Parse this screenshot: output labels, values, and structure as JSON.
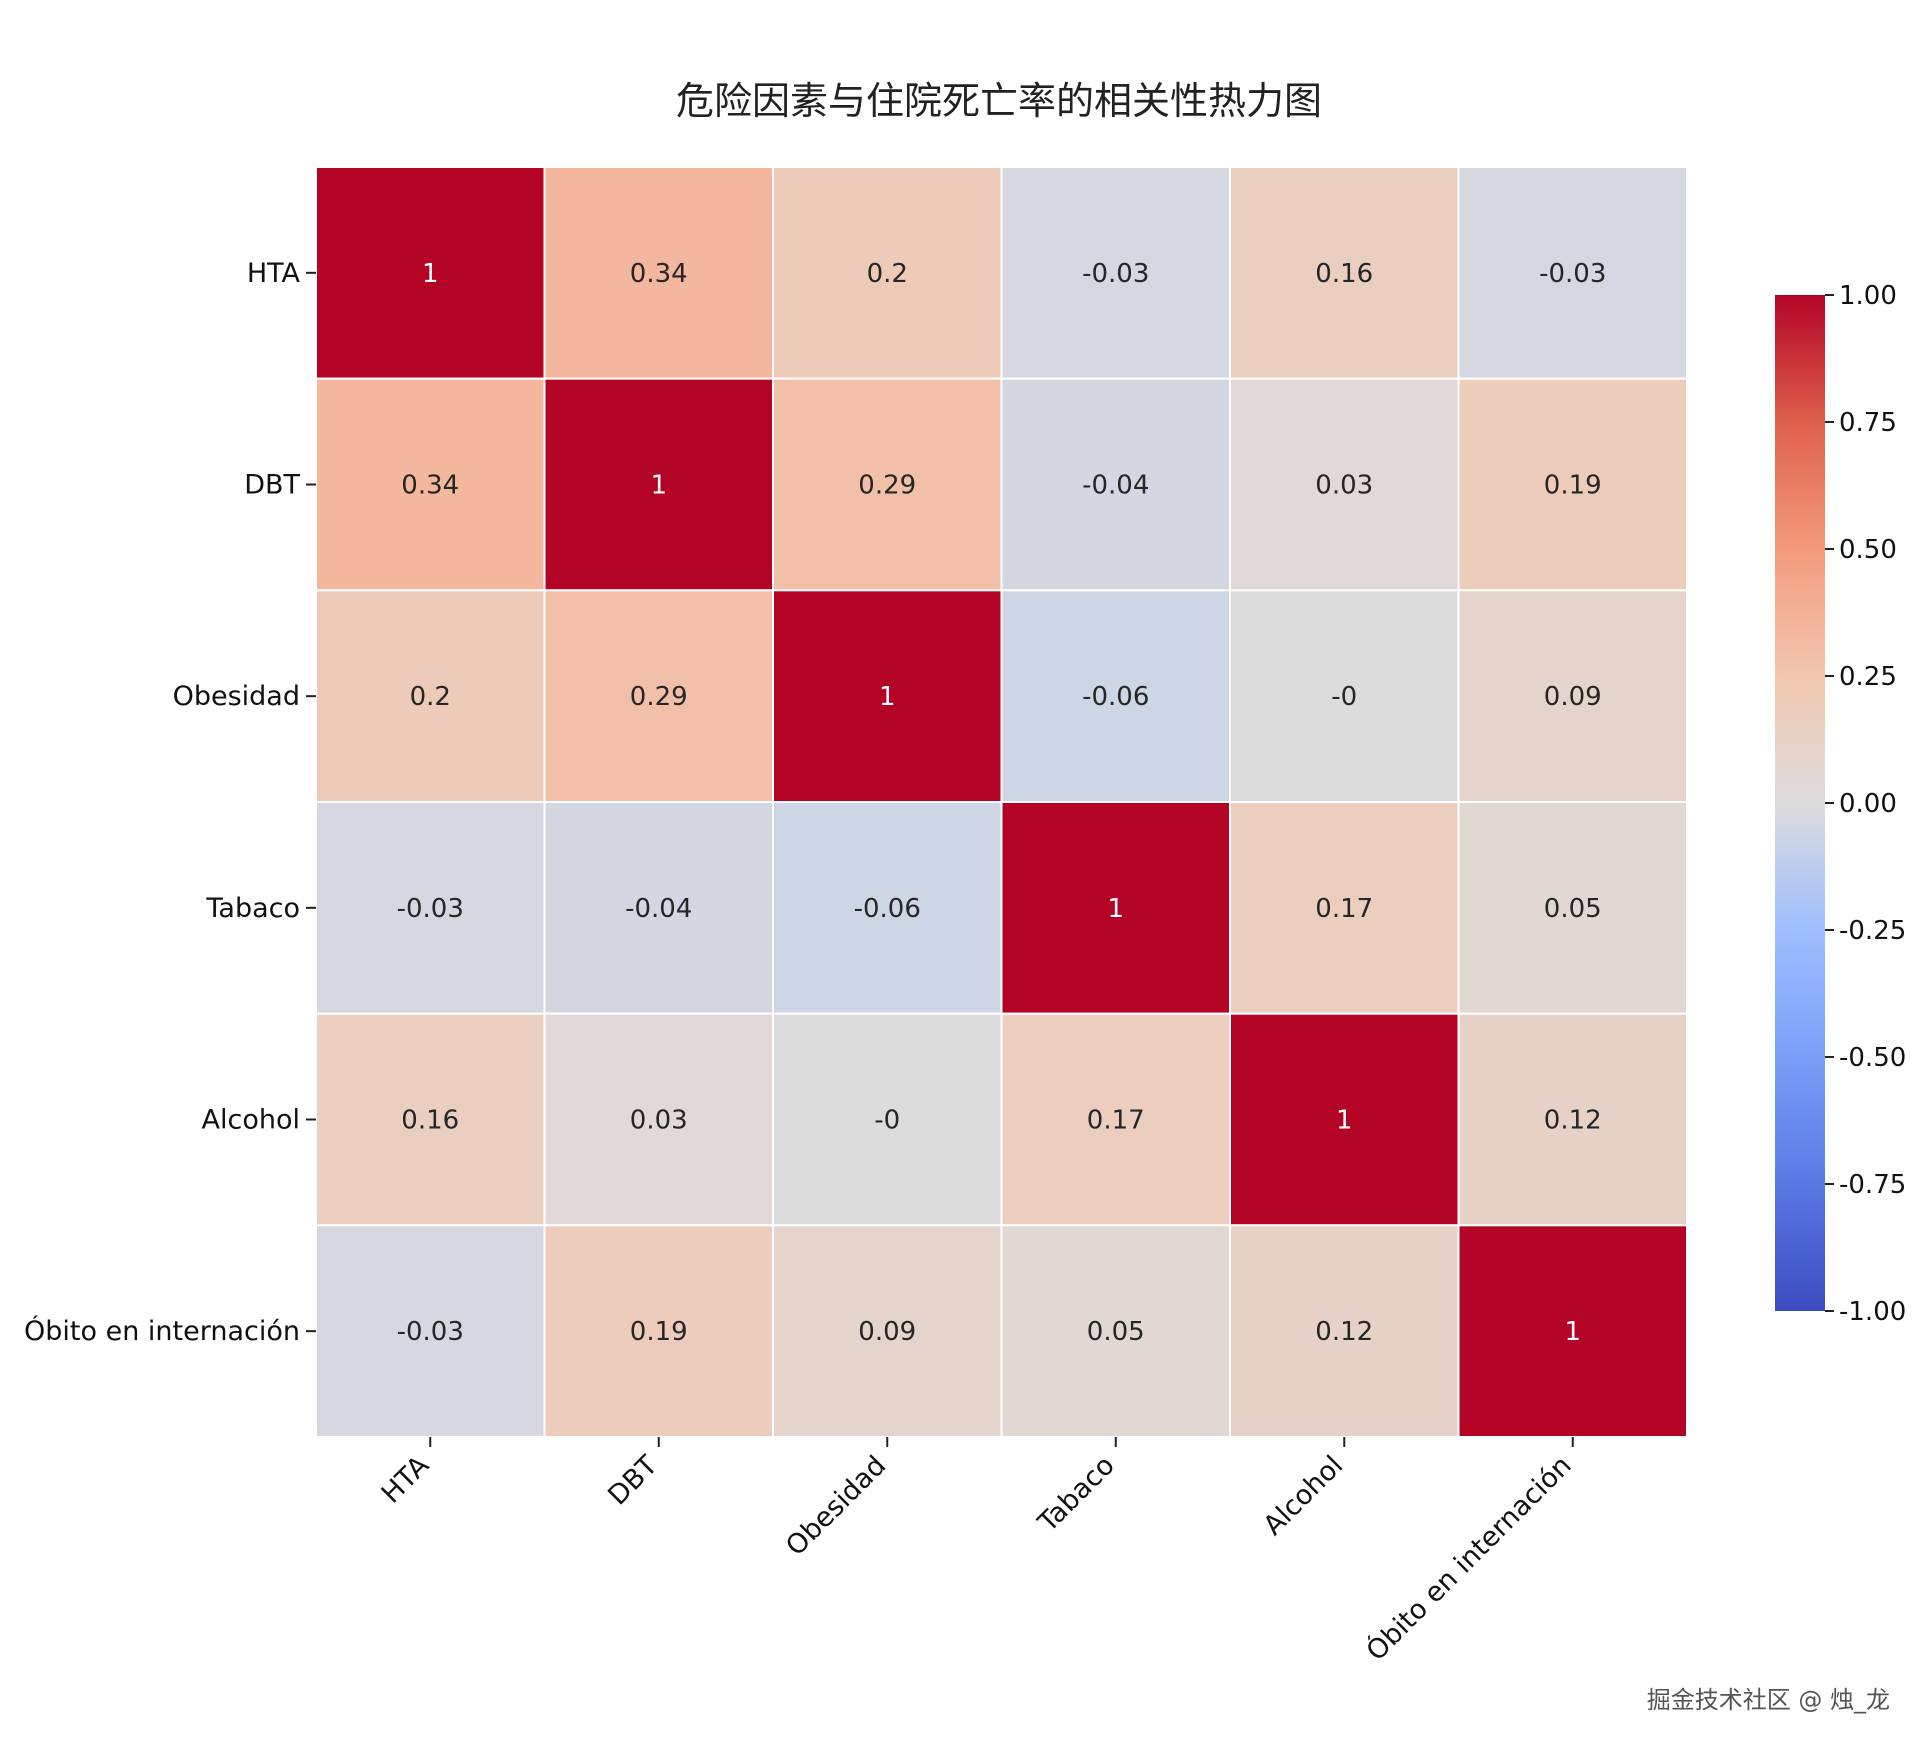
{
  "chart_data": {
    "type": "heatmap",
    "title": "危险因素与住院死亡率的相关性热力图",
    "x_labels": [
      "HTA",
      "DBT",
      "Obesidad",
      "Tabaco",
      "Alcohol",
      "Óbito en internación"
    ],
    "y_labels": [
      "HTA",
      "DBT",
      "Obesidad",
      "Tabaco",
      "Alcohol",
      "Óbito en internación"
    ],
    "values": [
      [
        1,
        0.34,
        0.2,
        -0.03,
        0.16,
        -0.03
      ],
      [
        0.34,
        1,
        0.29,
        -0.04,
        0.03,
        0.19
      ],
      [
        0.2,
        0.29,
        1,
        -0.06,
        -0.0,
        0.09
      ],
      [
        -0.03,
        -0.04,
        -0.06,
        1,
        0.17,
        0.05
      ],
      [
        0.16,
        0.03,
        -0.0,
        0.17,
        1,
        0.12
      ],
      [
        -0.03,
        0.19,
        0.09,
        0.05,
        0.12,
        1
      ]
    ],
    "annotations": [
      [
        "1",
        "0.34",
        "0.2",
        "-0.03",
        "0.16",
        "-0.03"
      ],
      [
        "0.34",
        "1",
        "0.29",
        "-0.04",
        "0.03",
        "0.19"
      ],
      [
        "0.2",
        "0.29",
        "1",
        "-0.06",
        "-0",
        "0.09"
      ],
      [
        "-0.03",
        "-0.04",
        "-0.06",
        "1",
        "0.17",
        "0.05"
      ],
      [
        "0.16",
        "0.03",
        "-0",
        "0.17",
        "1",
        "0.12"
      ],
      [
        "-0.03",
        "0.19",
        "0.09",
        "0.05",
        "0.12",
        "1"
      ]
    ],
    "colormap": "coolwarm",
    "vmin": -1,
    "vmax": 1,
    "colorbar_ticks": [
      "1.00",
      "0.75",
      "0.50",
      "0.25",
      "0.00",
      "-0.25",
      "-0.50",
      "-0.75",
      "-1.00"
    ],
    "colorbar_tick_values": [
      1,
      0.75,
      0.5,
      0.25,
      0,
      -0.25,
      -0.5,
      -0.75,
      -1
    ],
    "x_tick_rotation": 45,
    "grid_line_color": "#ffffff"
  },
  "watermark": "掘金技术社区 @ 烛_龙"
}
